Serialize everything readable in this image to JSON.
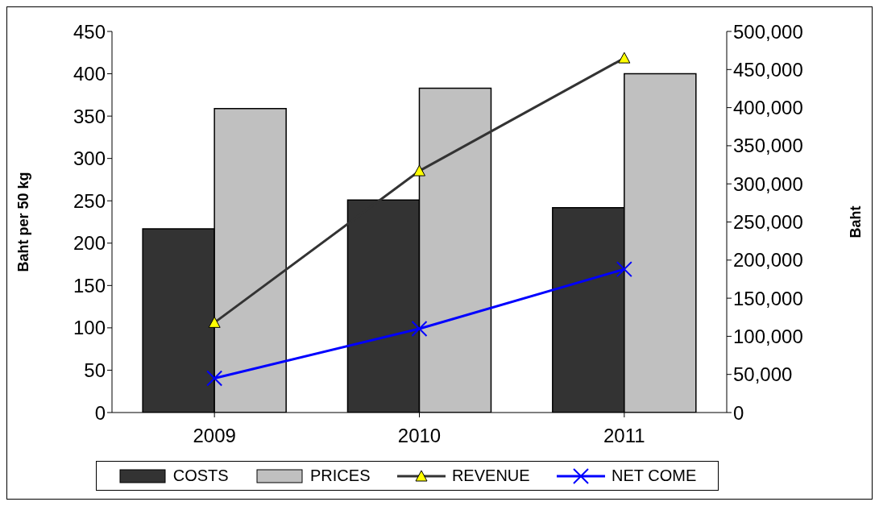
{
  "chart_data": {
    "type": "bar",
    "categories": [
      "2009",
      "2010",
      "2011"
    ],
    "ylabel": "Baht per 50 kg",
    "y2label": "Baht",
    "ylim": [
      0,
      450
    ],
    "yticks": [
      0,
      50,
      100,
      150,
      200,
      250,
      300,
      350,
      400,
      450
    ],
    "y2lim": [
      0,
      500000
    ],
    "y2ticks": [
      0,
      {
        "value": 50000,
        "label": "50,000"
      },
      {
        "value": 100000,
        "label": "100,000"
      },
      {
        "value": 150000,
        "label": "150,000"
      },
      {
        "value": 200000,
        "label": "200,000"
      },
      {
        "value": 250000,
        "label": "250,000"
      },
      {
        "value": 300000,
        "label": "300,000"
      },
      {
        "value": 350000,
        "label": "350,000"
      },
      {
        "value": 400000,
        "label": "400,000"
      },
      {
        "value": 450000,
        "label": "450,000"
      },
      {
        "value": 500000,
        "label": "500,000"
      }
    ],
    "legend": "bottom",
    "grid": false,
    "series": [
      {
        "name": "COSTS",
        "color": "#333333",
        "values": [
          217,
          251,
          242
        ]
      },
      {
        "name": "PRICES",
        "color": "#c0c0c0",
        "values": [
          359,
          383,
          400
        ]
      },
      {
        "name": "REVENUE",
        "type": "line",
        "axis": "y2",
        "marker": "triangle",
        "color": "#333333",
        "values": [
          118000,
          317000,
          465000
        ]
      },
      {
        "name": "NET COME",
        "type": "line",
        "axis": "y2",
        "marker": "cross",
        "color": "#0000ff",
        "values": [
          45000,
          110000,
          188000
        ]
      }
    ]
  }
}
